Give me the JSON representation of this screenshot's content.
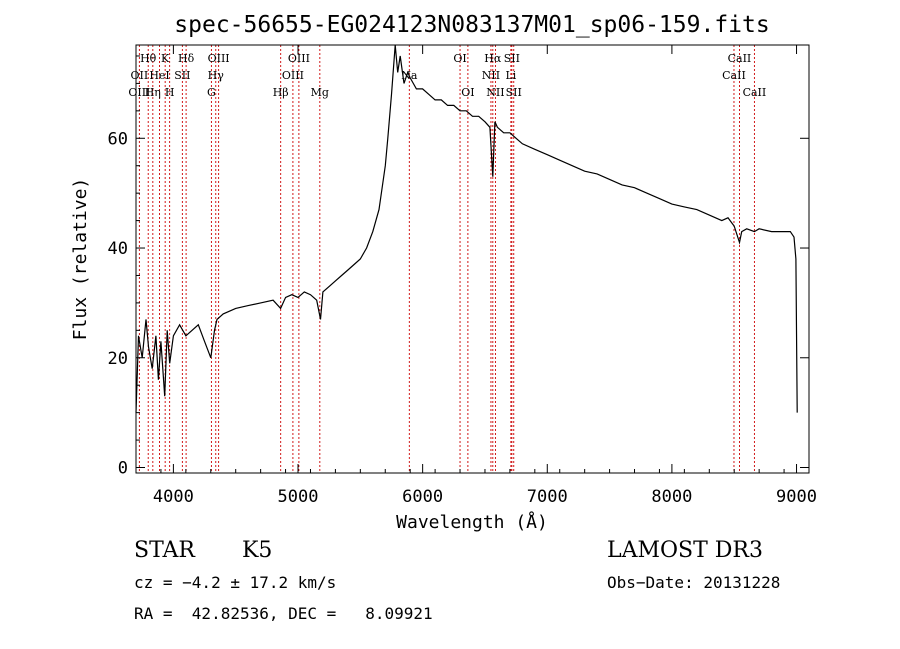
{
  "chart_data": {
    "type": "line",
    "title": "spec-56655-EG024123N083137M01_sp06-159.fits",
    "xlabel": "Wavelength (Å)",
    "ylabel": "Flux (relative)",
    "xlim": [
      3700,
      9100
    ],
    "ylim": [
      -1,
      77
    ],
    "x_ticks": [
      4000,
      5000,
      6000,
      7000,
      8000,
      9000
    ],
    "y_ticks": [
      0,
      20,
      40,
      60
    ],
    "grid": false,
    "series": [
      {
        "x": [
          3700,
          3720,
          3750,
          3780,
          3800,
          3830,
          3860,
          3880,
          3900,
          3930,
          3950,
          3970,
          4000,
          4050,
          4100,
          4150,
          4200,
          4250,
          4300,
          4330,
          4350,
          4400,
          4500,
          4600,
          4700,
          4800,
          4860,
          4900,
          4950,
          5000,
          5050,
          5100,
          5150,
          5180,
          5200,
          5250,
          5300,
          5350,
          5400,
          5450,
          5500,
          5550,
          5600,
          5650,
          5700,
          5720,
          5750,
          5780,
          5800,
          5820,
          5850,
          5880,
          5900,
          5950,
          6000,
          6050,
          6100,
          6150,
          6200,
          6250,
          6300,
          6350,
          6400,
          6450,
          6500,
          6540,
          6563,
          6580,
          6600,
          6650,
          6700,
          6750,
          6800,
          6900,
          7000,
          7100,
          7200,
          7300,
          7400,
          7500,
          7600,
          7700,
          7800,
          7900,
          8000,
          8100,
          8200,
          8300,
          8400,
          8450,
          8500,
          8542,
          8560,
          8600,
          8662,
          8700,
          8800,
          8900,
          8950,
          8980,
          8995,
          9005
        ],
        "y": [
          10,
          24,
          20,
          27,
          22,
          18,
          24,
          16,
          23,
          13,
          25,
          19,
          24,
          26,
          24,
          25,
          26,
          23,
          20,
          25,
          27,
          28,
          29,
          29.5,
          30,
          30.5,
          29,
          31,
          31.5,
          31,
          32,
          31.5,
          30.5,
          27,
          32,
          33,
          34,
          35,
          36,
          37,
          38,
          40,
          43,
          47,
          55,
          60,
          68,
          78,
          72,
          75,
          70,
          72,
          71,
          69,
          69,
          68,
          67,
          67,
          66,
          66,
          65,
          65,
          64,
          64,
          63,
          62,
          53,
          63,
          62,
          61,
          61,
          60,
          59,
          58,
          57,
          56,
          55,
          54,
          53.5,
          52.5,
          51.5,
          51,
          50,
          49,
          48,
          47.5,
          47,
          46,
          45,
          45.5,
          44,
          41,
          43,
          43.5,
          43,
          43.5,
          43,
          43,
          43,
          42,
          38,
          10
        ]
      }
    ],
    "annotations": [
      {
        "label": "Hθ",
        "x": 3798,
        "row": 0
      },
      {
        "label": "OII",
        "x": 3727,
        "row": 1
      },
      {
        "label": "OIII",
        "x": 3727,
        "row": 2
      },
      {
        "label": "K",
        "x": 3934,
        "row": 0
      },
      {
        "label": "HeI",
        "x": 3889,
        "row": 1
      },
      {
        "label": "Hη",
        "x": 3835,
        "row": 2
      },
      {
        "label": "SII",
        "x": 4072,
        "row": 1
      },
      {
        "label": "H",
        "x": 3970,
        "row": 2
      },
      {
        "label": "Hδ",
        "x": 4102,
        "row": 0
      },
      {
        "label": "OIII",
        "x": 4363,
        "row": 0
      },
      {
        "label": "Hγ",
        "x": 4340,
        "row": 1
      },
      {
        "label": "G",
        "x": 4305,
        "row": 2
      },
      {
        "label": "OIII",
        "x": 5007,
        "row": 0
      },
      {
        "label": "OIII",
        "x": 4959,
        "row": 1
      },
      {
        "label": "Hβ",
        "x": 4861,
        "row": 2
      },
      {
        "label": "Mg",
        "x": 5175,
        "row": 2
      },
      {
        "label": "Na",
        "x": 5893,
        "row": 1
      },
      {
        "label": "OI",
        "x": 6300,
        "row": 0
      },
      {
        "label": "OI",
        "x": 6363,
        "row": 2
      },
      {
        "label": "Hα",
        "x": 6563,
        "row": 0
      },
      {
        "label": "SII",
        "x": 6716,
        "row": 0
      },
      {
        "label": "NII",
        "x": 6548,
        "row": 1
      },
      {
        "label": "Li",
        "x": 6708,
        "row": 1
      },
      {
        "label": "NII",
        "x": 6584,
        "row": 2
      },
      {
        "label": "SII",
        "x": 6731,
        "row": 2
      },
      {
        "label": "CaII",
        "x": 8542,
        "row": 0
      },
      {
        "label": "CaII",
        "x": 8498,
        "row": 1
      },
      {
        "label": "CaII",
        "x": 8662,
        "row": 2
      }
    ],
    "line_color": "#000000",
    "marker_color": "#cc0000"
  },
  "info": {
    "class": "STAR",
    "subclass": "K5",
    "survey": "LAMOST DR3",
    "cz": "cz = −4.2 ± 17.2 km/s",
    "obs_date": "Obs−Date: 20131228",
    "radec": "RA =  42.82536, DEC =   8.09921"
  }
}
